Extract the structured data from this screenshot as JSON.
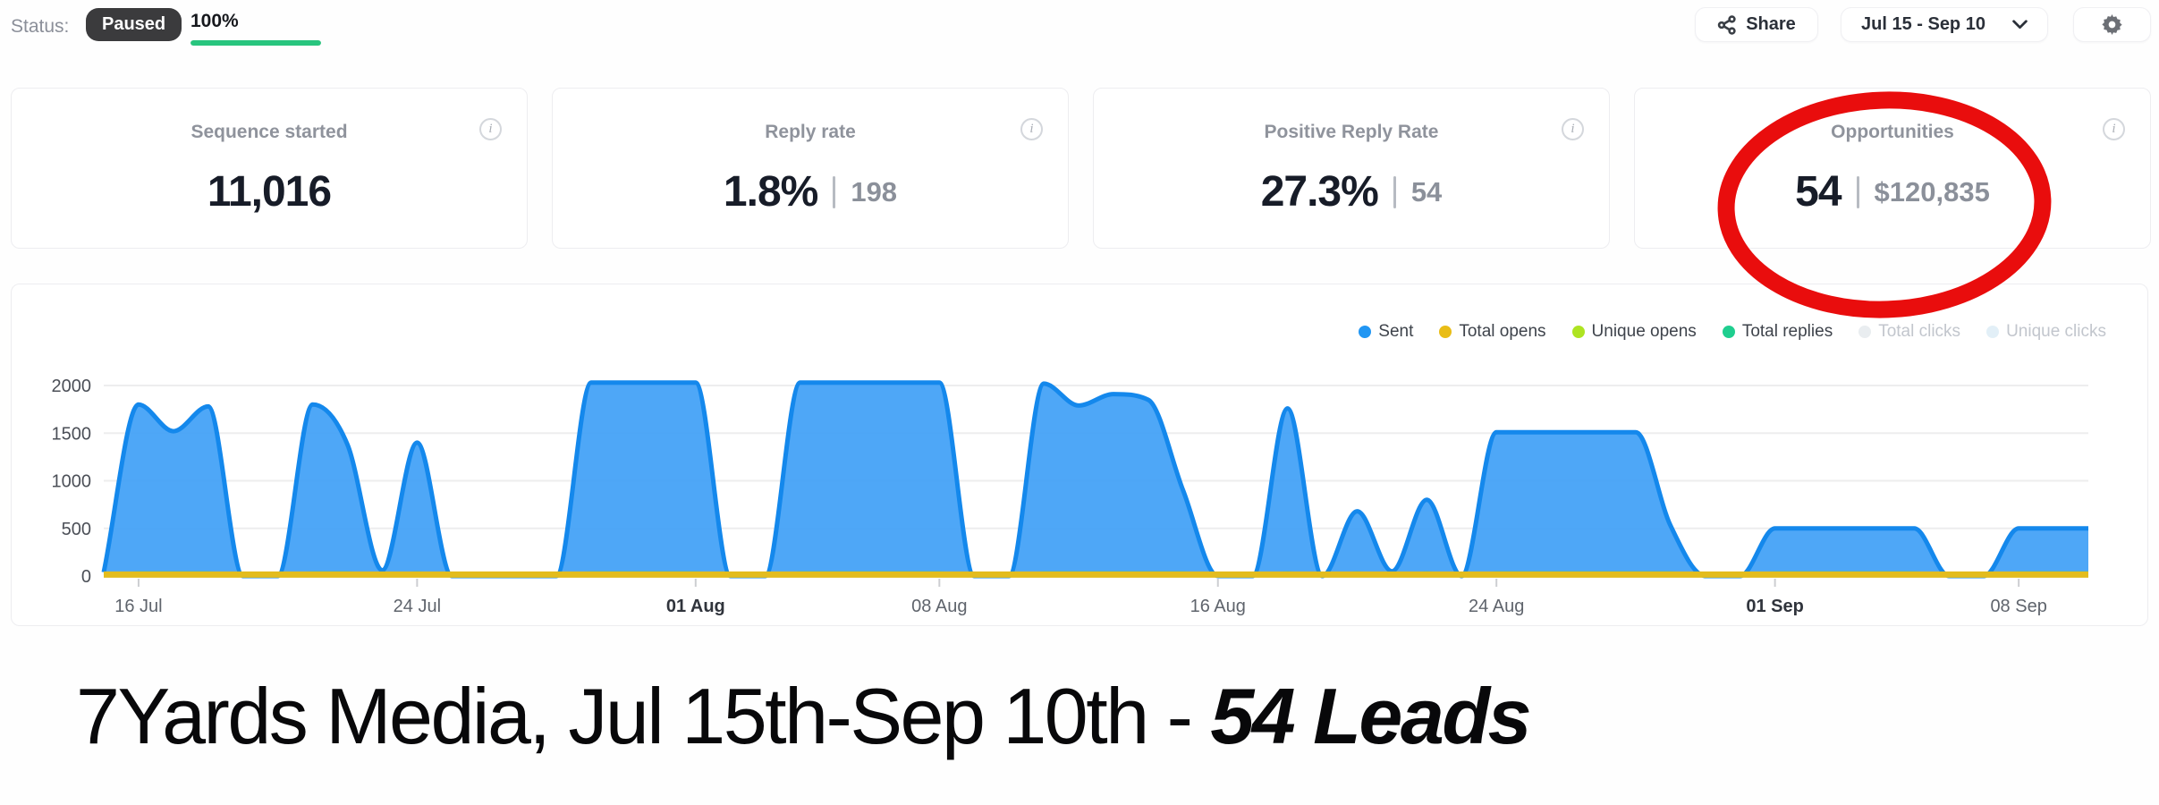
{
  "status_bar": {
    "label": "Status:",
    "badge": "Paused",
    "progress_text": "100%",
    "progress_percent": 100,
    "progress_color": "#28c57e"
  },
  "toolbar": {
    "share_label": "Share",
    "date_range_label": "Jul 15 - Sep 10",
    "icons": [
      "share-nodes-icon",
      "chevron-down-icon",
      "gear-icon"
    ]
  },
  "icons": {
    "info_glyph": "i"
  },
  "stat_cards": [
    {
      "title": "Sequence started",
      "value": "11,016",
      "secondary": ""
    },
    {
      "title": "Reply rate",
      "value": "1.8%",
      "secondary": "198"
    },
    {
      "title": "Positive Reply Rate",
      "value": "27.3%",
      "secondary": "54"
    },
    {
      "title": "Opportunities",
      "value": "54",
      "secondary": "$120,835"
    }
  ],
  "annotation": {
    "type": "hand-drawn-red-ellipse",
    "target": "Opportunities card",
    "color": "#e90d0d"
  },
  "headline": {
    "text_regular": "7Yards Media, Jul 15th-Sep 10th - ",
    "text_bold_italic": "54 Leads"
  },
  "chart_data": {
    "type": "area",
    "x_axis": {
      "start_label": "Jul 15",
      "end_label": "Sep 10",
      "num_days": 58,
      "ticks": [
        {
          "label": "16 Jul",
          "day_index": 1,
          "bold": false
        },
        {
          "label": "24 Jul",
          "day_index": 9,
          "bold": false
        },
        {
          "label": "01 Aug",
          "day_index": 17,
          "bold": true
        },
        {
          "label": "08 Aug",
          "day_index": 24,
          "bold": false
        },
        {
          "label": "16 Aug",
          "day_index": 32,
          "bold": false
        },
        {
          "label": "24 Aug",
          "day_index": 40,
          "bold": false
        },
        {
          "label": "01 Sep",
          "day_index": 48,
          "bold": true
        },
        {
          "label": "08 Sep",
          "day_index": 55,
          "bold": false
        }
      ]
    },
    "y_axis": {
      "ticks": [
        0,
        500,
        1000,
        1500,
        2000
      ],
      "max": 2100
    },
    "grid": "horizontal",
    "legend_position": "top-right",
    "legend": [
      {
        "label": "Sent",
        "color": "#2196f3",
        "enabled": true
      },
      {
        "label": "Total opens",
        "color": "#e9bd16",
        "enabled": true
      },
      {
        "label": "Unique opens",
        "color": "#aee422",
        "enabled": true
      },
      {
        "label": "Total replies",
        "color": "#1fce8f",
        "enabled": true
      },
      {
        "label": "Total clicks",
        "color": "#e9edf0",
        "enabled": false
      },
      {
        "label": "Unique clicks",
        "color": "#e2eff7",
        "enabled": false
      }
    ],
    "series": [
      {
        "name": "Sent",
        "color": "#1488ec",
        "fill_color": "#3fa0f6",
        "fill_opacity": 0.92,
        "stroke_width": 5,
        "values": [
          40,
          1800,
          1520,
          1780,
          0,
          0,
          1800,
          1380,
          60,
          1400,
          0,
          0,
          0,
          0,
          2030,
          2030,
          2030,
          2030,
          0,
          0,
          2030,
          2030,
          2030,
          2030,
          2030,
          0,
          0,
          2020,
          1790,
          1910,
          1850,
          900,
          0,
          0,
          1760,
          0,
          680,
          50,
          800,
          0,
          1510,
          1510,
          1510,
          1510,
          1510,
          530,
          0,
          0,
          500,
          500,
          500,
          500,
          500,
          0,
          0,
          500,
          500,
          500
        ]
      },
      {
        "name": "Unique opens",
        "color": "#a8e01f",
        "stroke_width": 3,
        "constant": 12
      },
      {
        "name": "Total replies",
        "color": "#1ec98b",
        "stroke_width": 4,
        "values": [
          8,
          30,
          30,
          30,
          8,
          8,
          30,
          30,
          8,
          30,
          8,
          8,
          8,
          8,
          30,
          30,
          30,
          30,
          8,
          8,
          30,
          30,
          30,
          30,
          30,
          8,
          8,
          30,
          30,
          30,
          30,
          30,
          8,
          8,
          30,
          8,
          30,
          8,
          30,
          8,
          30,
          30,
          30,
          30,
          30,
          30,
          8,
          8,
          30,
          30,
          30,
          30,
          30,
          8,
          8,
          30,
          30,
          30
        ]
      },
      {
        "name": "Total opens",
        "color": "#e3bc1e",
        "stroke_width": 7,
        "constant": 15
      },
      {
        "name": "Total clicks",
        "visible": false
      },
      {
        "name": "Unique clicks",
        "visible": false
      }
    ]
  }
}
